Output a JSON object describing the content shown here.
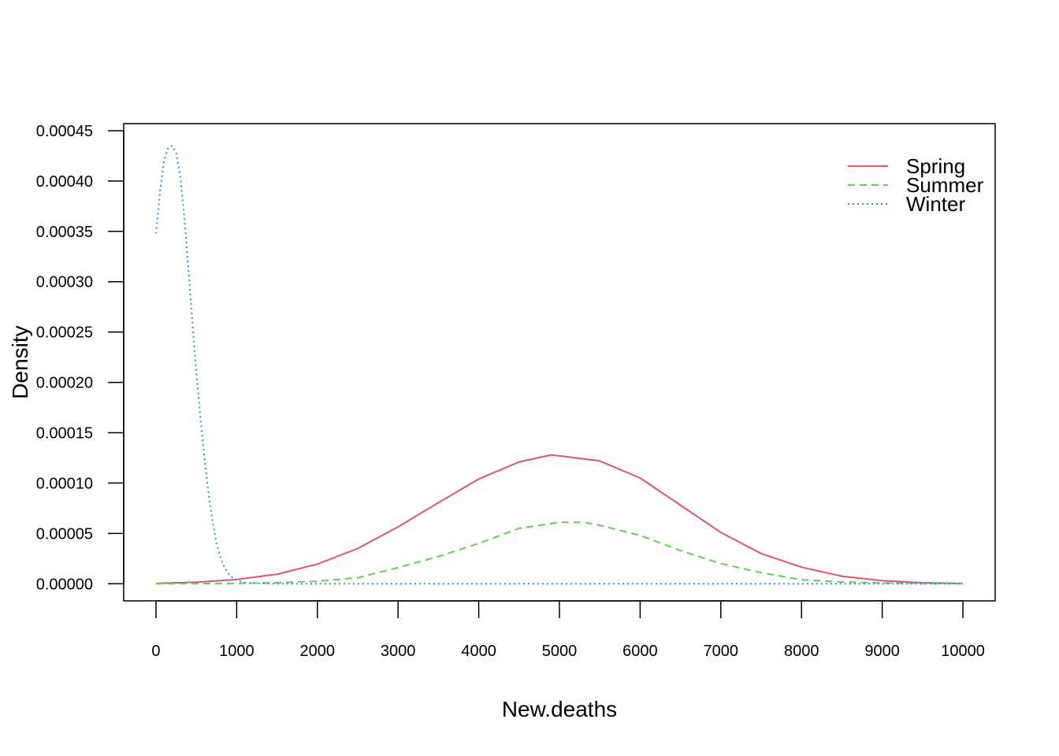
{
  "chart_data": {
    "type": "line",
    "title": "",
    "xlabel": "New.deaths",
    "ylabel": "Density",
    "xlim": [
      -400,
      10400
    ],
    "ylim": [
      -1.7e-05,
      0.000457
    ],
    "x_ticks": [
      "0",
      "1000",
      "2000",
      "3000",
      "4000",
      "5000",
      "6000",
      "7000",
      "8000",
      "9000",
      "10000"
    ],
    "y_ticks": [
      "0.00000",
      "0.00005",
      "0.00010",
      "0.00015",
      "0.00020",
      "0.00025",
      "0.00030",
      "0.00035",
      "0.00040",
      "0.00045"
    ],
    "grid": false,
    "legend_position": "top-right",
    "series": [
      {
        "name": "Spring",
        "color": "#DF536B",
        "dash": "solid",
        "points": [
          [
            0,
            3e-07
          ],
          [
            500,
            1.5e-06
          ],
          [
            1000,
            4.2e-06
          ],
          [
            1500,
            9.5e-06
          ],
          [
            2000,
            1.95e-05
          ],
          [
            2500,
            3.5e-05
          ],
          [
            3000,
            5.65e-05
          ],
          [
            3500,
            8.05e-05
          ],
          [
            4000,
            0.000104
          ],
          [
            4500,
            0.000121
          ],
          [
            4900,
            0.000128
          ],
          [
            5500,
            0.000122
          ],
          [
            6000,
            0.000105
          ],
          [
            6500,
            7.8e-05
          ],
          [
            7000,
            5.1e-05
          ],
          [
            7500,
            3e-05
          ],
          [
            8000,
            1.65e-05
          ],
          [
            8500,
            7.5e-06
          ],
          [
            9000,
            3e-06
          ],
          [
            9500,
            1e-06
          ],
          [
            10000,
            3e-07
          ]
        ]
      },
      {
        "name": "Summer",
        "color": "#61D04F",
        "dash": "dashed",
        "points": [
          [
            0,
            0
          ],
          [
            500,
            1e-07
          ],
          [
            1000,
            4e-07
          ],
          [
            1500,
            1e-06
          ],
          [
            2000,
            2.5e-06
          ],
          [
            2500,
            6e-06
          ],
          [
            3000,
            1.6e-05
          ],
          [
            3500,
            2.7e-05
          ],
          [
            4000,
            4e-05
          ],
          [
            4500,
            5.5e-05
          ],
          [
            5000,
            6.1e-05
          ],
          [
            5300,
            6.1e-05
          ],
          [
            5500,
            5.8e-05
          ],
          [
            6000,
            4.8e-05
          ],
          [
            6500,
            3.3e-05
          ],
          [
            7000,
            2e-05
          ],
          [
            7500,
            1.1e-05
          ],
          [
            8000,
            4e-06
          ],
          [
            8500,
            1.8e-06
          ],
          [
            9000,
            8e-07
          ],
          [
            9500,
            3e-07
          ],
          [
            10000,
            1e-07
          ]
        ]
      },
      {
        "name": "Winter",
        "color": "#2297E6",
        "dash": "dotted",
        "points": [
          [
            0,
            0.000348
          ],
          [
            50,
            0.00039
          ],
          [
            100,
            0.00042
          ],
          [
            150,
            0.000433
          ],
          [
            200,
            0.000435
          ],
          [
            250,
            0.000428
          ],
          [
            300,
            0.000405
          ],
          [
            350,
            0.000365
          ],
          [
            400,
            0.000315
          ],
          [
            450,
            0.000262
          ],
          [
            500,
            0.00021
          ],
          [
            550,
            0.000165
          ],
          [
            600,
            0.000125
          ],
          [
            650,
            9.1e-05
          ],
          [
            700,
            6.2e-05
          ],
          [
            750,
            4e-05
          ],
          [
            800,
            2.6e-05
          ],
          [
            850,
            1.6e-05
          ],
          [
            900,
            1e-05
          ],
          [
            950,
            6e-06
          ],
          [
            1000,
            3.5e-06
          ],
          [
            1100,
            1e-06
          ],
          [
            1300,
            3e-07
          ],
          [
            1600,
            0
          ],
          [
            3000,
            0
          ],
          [
            5000,
            0
          ],
          [
            7000,
            0
          ],
          [
            10000,
            0
          ]
        ]
      }
    ]
  }
}
